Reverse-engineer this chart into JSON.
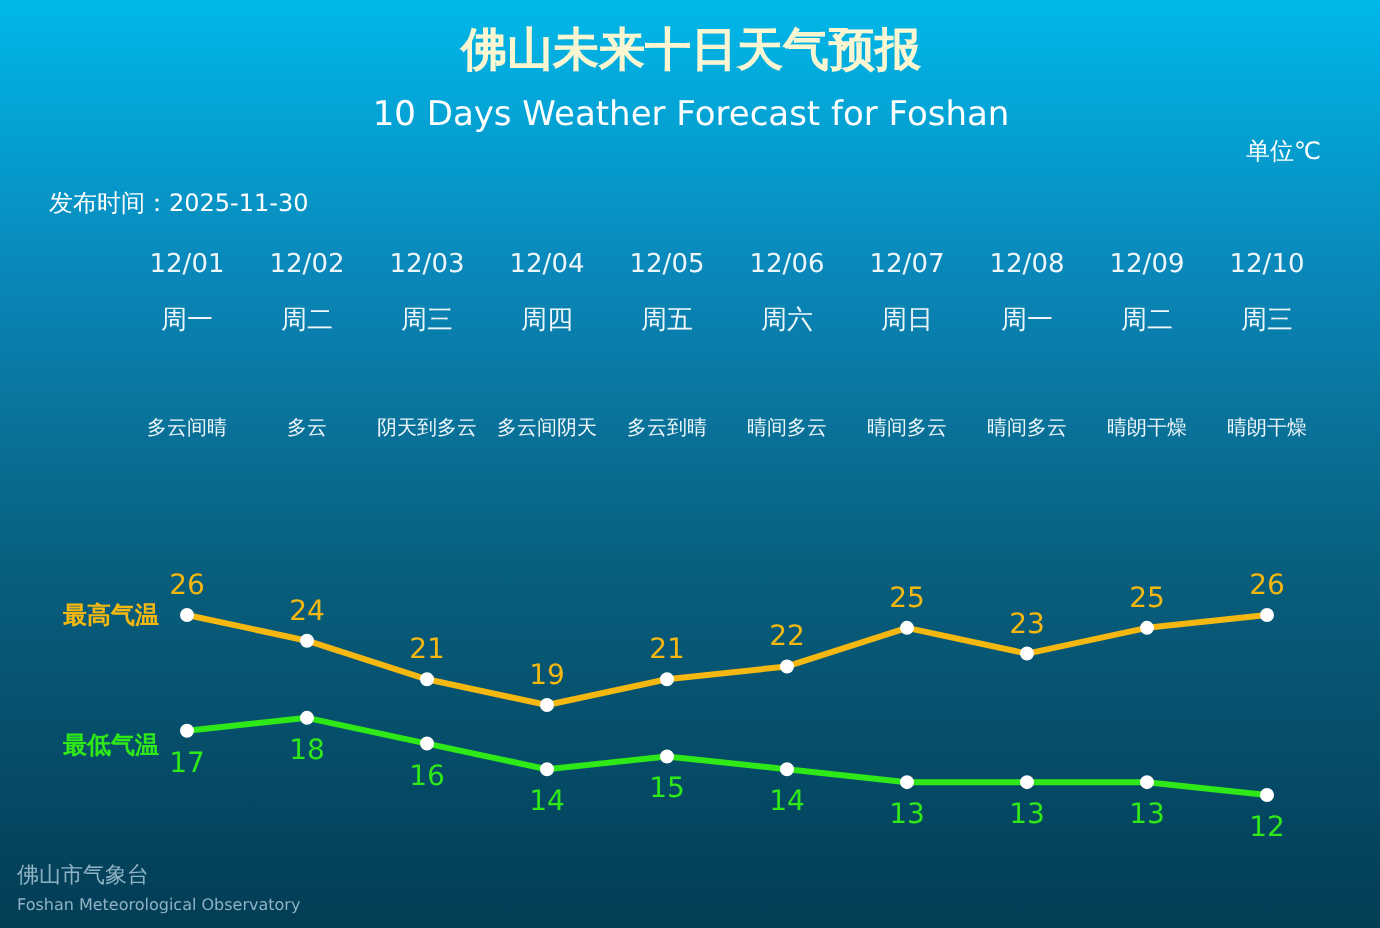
{
  "chart_data": {
    "type": "line",
    "title": "佛山未来十日天气预报",
    "subtitle": "10 Days Weather Forecast for Foshan",
    "categories": [
      "12/01",
      "12/02",
      "12/03",
      "12/04",
      "12/05",
      "12/06",
      "12/07",
      "12/08",
      "12/09",
      "12/10"
    ],
    "series": [
      {
        "name": "最高气温",
        "color": "#f5b810",
        "values": [
          26,
          24,
          21,
          19,
          21,
          22,
          25,
          23,
          25,
          26
        ]
      },
      {
        "name": "最低气温",
        "color": "#2ee818",
        "values": [
          17,
          18,
          16,
          14,
          15,
          14,
          13,
          13,
          13,
          12
        ]
      }
    ],
    "data_labels": true,
    "marker": "circle",
    "annotations": [
      "单位℃",
      "发布时间：2025-11-30",
      "周一",
      "周二",
      "周三",
      "周四",
      "周五",
      "周六",
      "周日",
      "周一",
      "周二",
      "周三",
      "多云间晴",
      "多云",
      "阴天到多云",
      "多云间阴天",
      "多云到晴",
      "晴间多云",
      "晴间多云",
      "晴间多云",
      "晴朗干燥",
      "晴朗干燥",
      "佛山市气象台",
      "Foshan Meteorological Observatory"
    ]
  }
}
